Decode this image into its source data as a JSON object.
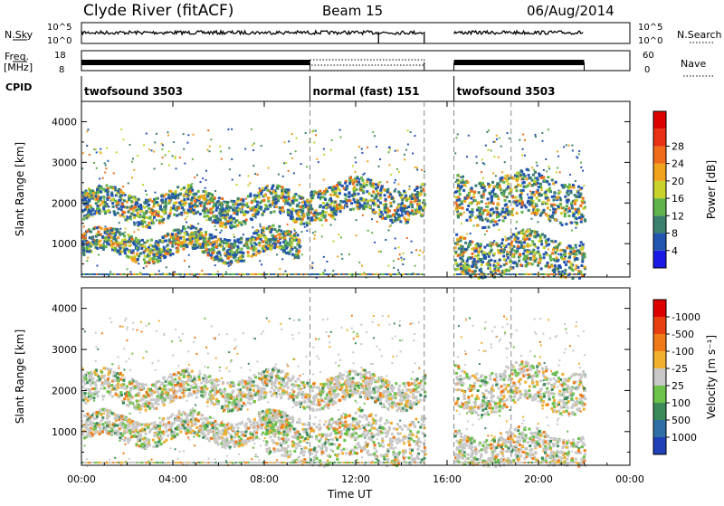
{
  "header": {
    "title": "Clyde River (fitACF)",
    "beam": "Beam 15",
    "date": "06/Aug/2014"
  },
  "noise_panel": {
    "left_label": "N.Sky",
    "left_top": "10^5",
    "left_bottom": "10^0",
    "right_top": "10^5",
    "right_bottom": "10^0",
    "right_label": "N.Search"
  },
  "freq_panel": {
    "left_label_1": "Freq.",
    "left_label_2": "[MHz]",
    "left_top": "18",
    "left_bottom": "8",
    "right_top": "60",
    "right_bottom": "0",
    "right_label": "Nave"
  },
  "cpid_panel": {
    "label": "CPID",
    "segments": [
      {
        "name": "twofsound 3503",
        "start_h": 0.0,
        "end_h": 10.0
      },
      {
        "name": "normal (fast) 151",
        "start_h": 10.0,
        "end_h": 15.0
      },
      {
        "name": "twofsound 3503",
        "start_h": 16.3,
        "end_h": 22.0
      }
    ]
  },
  "x_axis": {
    "title": "Time UT",
    "ticks": [
      "00:00",
      "04:00",
      "08:00",
      "12:00",
      "16:00",
      "20:00",
      "00:00"
    ],
    "tick_hours": [
      0,
      4,
      8,
      12,
      16,
      20,
      24
    ],
    "range_h": [
      0,
      24
    ]
  },
  "y_axis": {
    "title": "Slant Range [km]",
    "ticks": [
      "1000",
      "2000",
      "3000",
      "4000"
    ],
    "tick_values": [
      1000,
      2000,
      3000,
      4000
    ],
    "range_km": [
      180,
      4500
    ]
  },
  "power_bar": {
    "title": "Power [dB]",
    "labels": [
      "4",
      "8",
      "12",
      "16",
      "20",
      "24",
      "28"
    ],
    "colors": [
      "#1a1ae6",
      "#2255b0",
      "#3b7f6e",
      "#5fb34a",
      "#c9d22a",
      "#f0a21c",
      "#f06c1a",
      "#e83012",
      "#dd0000"
    ]
  },
  "velocity_bar": {
    "title": "Velocity [m s⁻¹]",
    "labels": [
      "1000",
      "500",
      "100",
      "25",
      "-25",
      "-100",
      "-500",
      "-1000"
    ],
    "colors": [
      "#2040b8",
      "#2f6fa6",
      "#3a8a5a",
      "#6cc24a",
      "#c8c8c8",
      "#f0b030",
      "#f07a18",
      "#e84010",
      "#dd0000"
    ]
  },
  "chart_data": {
    "type": "heatmap",
    "description_fields": {
      "x": "Time UT (hours)",
      "y": "Slant Range (km)"
    },
    "data_gaps_h": [
      [
        15.0,
        16.3
      ],
      [
        22.0,
        24.0
      ]
    ],
    "power_bands": [
      {
        "t0": 0.0,
        "t1": 10.0,
        "r0": 1600,
        "r1": 2300,
        "level": "mixed 8-20 dB"
      },
      {
        "t0": 0.0,
        "t1": 9.5,
        "r0": 700,
        "r1": 1300,
        "level": "mixed 8-24 dB"
      },
      {
        "t0": 10.0,
        "t1": 15.0,
        "r0": 1700,
        "r1": 2500,
        "level": "8-16 dB"
      },
      {
        "t0": 16.3,
        "t1": 22.0,
        "r0": 1600,
        "r1": 2700,
        "level": "8-24 dB"
      },
      {
        "t0": 16.3,
        "t1": 22.0,
        "r0": 300,
        "r1": 1200,
        "level": "8-24 dB"
      }
    ],
    "velocity_bands": [
      {
        "t0": 0.0,
        "t1": 15.0,
        "r0": 1700,
        "r1": 2400,
        "level": "-25 to 25 m/s"
      },
      {
        "t0": 0.0,
        "t1": 9.0,
        "r0": 800,
        "r1": 1400,
        "level": "25 to 500 m/s"
      },
      {
        "t0": 8.0,
        "t1": 15.0,
        "r0": 300,
        "r1": 1400,
        "level": "-100 to -500 m/s"
      },
      {
        "t0": 16.3,
        "t1": 22.0,
        "r0": 1600,
        "r1": 2600,
        "level": "-25 to 25 m/s"
      },
      {
        "t0": 16.3,
        "t1": 22.0,
        "r0": 200,
        "r1": 1000,
        "level": "-100 to -500 m/s"
      }
    ]
  }
}
